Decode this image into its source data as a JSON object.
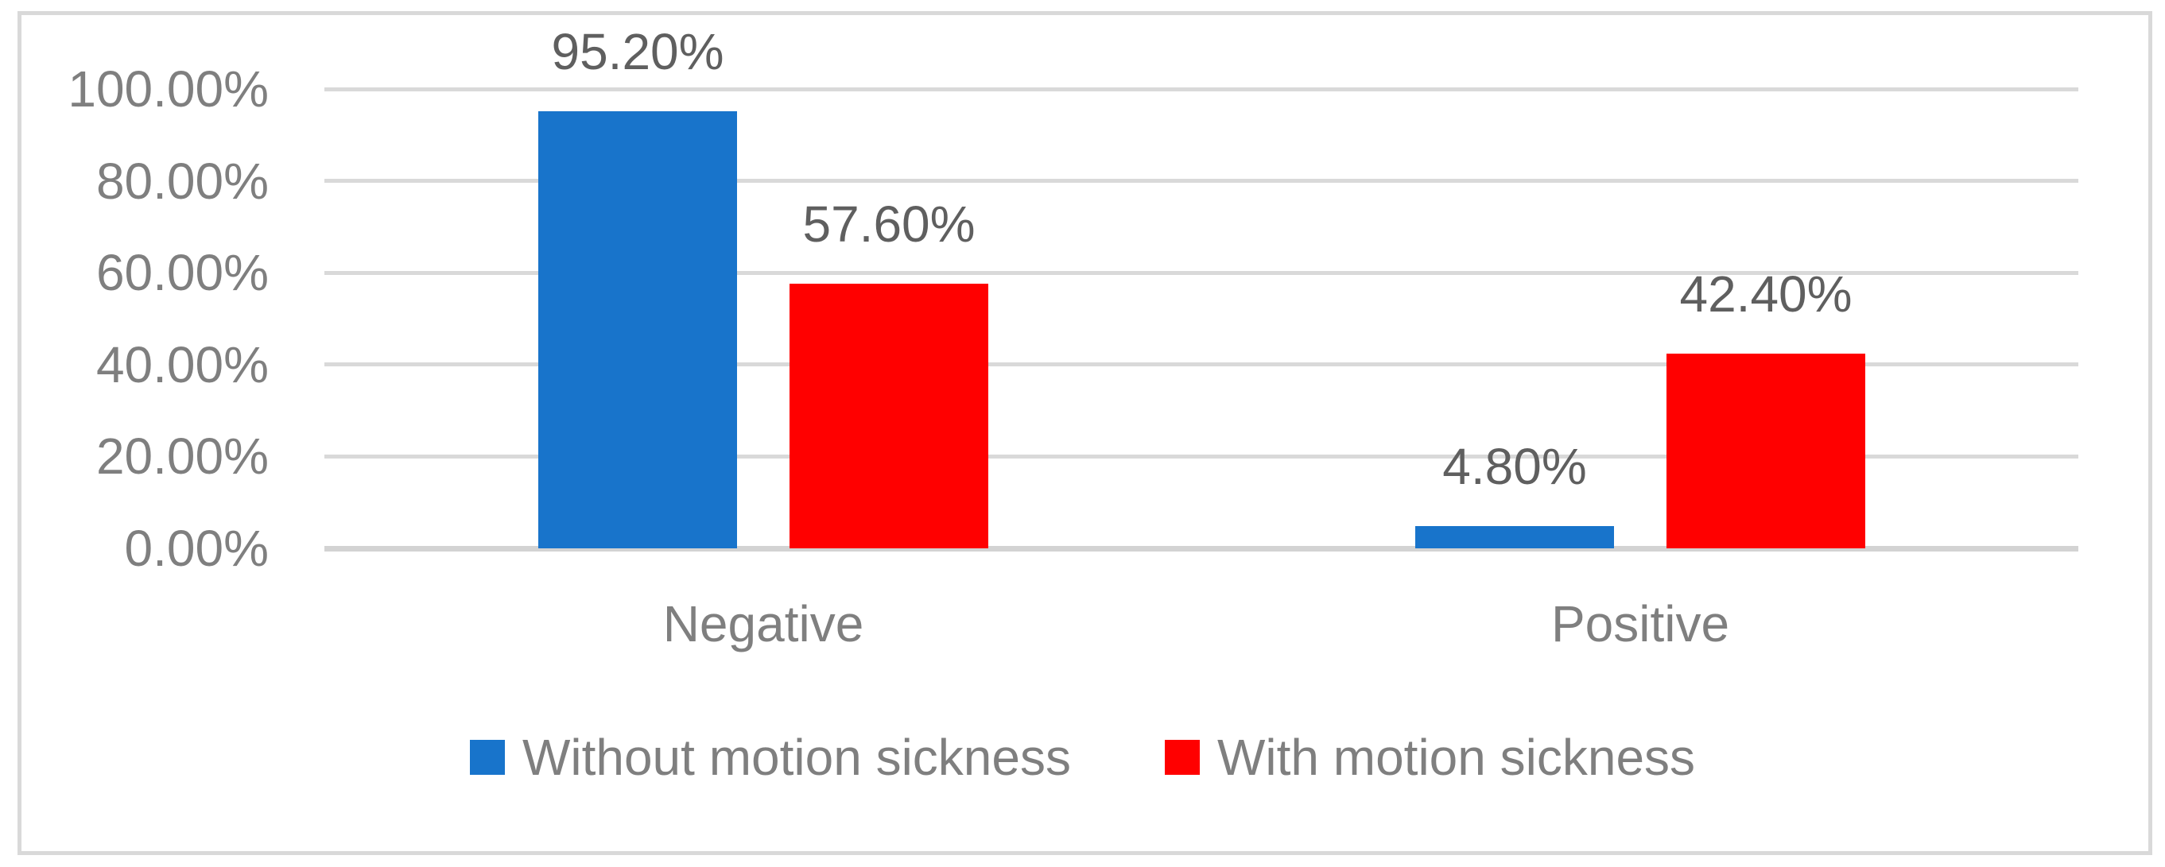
{
  "chart_data": {
    "type": "bar",
    "title": "",
    "xlabel": "",
    "ylabel": "",
    "categories": [
      "Negative",
      "Positive"
    ],
    "series": [
      {
        "name": "Without motion sickness",
        "color": "#1874CB",
        "values": [
          95.2,
          4.8
        ],
        "data_labels": [
          "95.20%",
          "4.80%"
        ]
      },
      {
        "name": "With motion sickness",
        "color": "#FF0000",
        "values": [
          57.6,
          42.4
        ],
        "data_labels": [
          "57.60%",
          "42.40%"
        ]
      }
    ],
    "ylim": [
      0,
      100
    ],
    "yticks": [
      {
        "value": 100,
        "label": "100.00%"
      },
      {
        "value": 80,
        "label": "80.00%"
      },
      {
        "value": 60,
        "label": "60.00%"
      },
      {
        "value": 40,
        "label": "40.00%"
      },
      {
        "value": 20,
        "label": "20.00%"
      },
      {
        "value": 0,
        "label": "0.00%"
      }
    ],
    "grid": true,
    "legend_position": "bottom"
  },
  "colors": {
    "background": "#FFFFFF",
    "frame_border": "#D9D9D9",
    "grid_line": "#D9D9D9",
    "axis_line": "#D3D3D3",
    "axis_text": "#7F7F7F",
    "category_text": "#7F7F7F",
    "legend_text": "#7F7F7F",
    "data_label_text": "#5F5F5F",
    "series_blue": "#1874CB",
    "series_red": "#FF0000"
  }
}
